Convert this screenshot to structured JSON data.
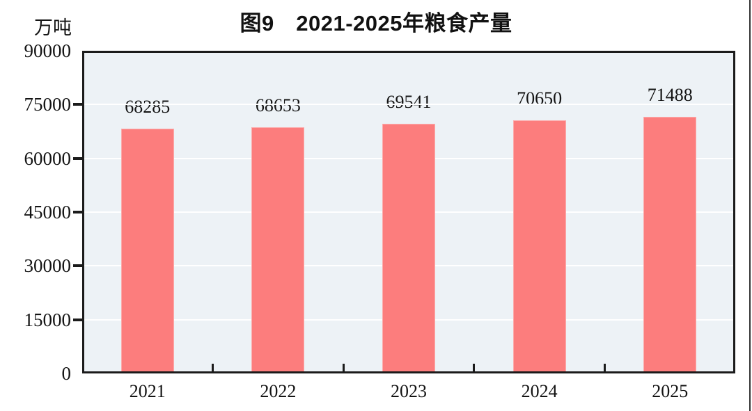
{
  "chart_data": {
    "type": "bar",
    "title": "图9　2021-2025年粮食产量",
    "unit": "万吨",
    "categories": [
      "2021",
      "2022",
      "2023",
      "2024",
      "2025"
    ],
    "values": [
      68285,
      68653,
      69541,
      70650,
      71488
    ],
    "bar_value_labels": [
      "68285",
      "68653",
      "69541",
      "70650",
      "71488"
    ],
    "xlabel": "",
    "ylabel": "万吨",
    "ylim": [
      0,
      90000
    ],
    "yticks": [
      0,
      15000,
      30000,
      45000,
      60000,
      75000,
      90000
    ],
    "grid": true,
    "legend": "none",
    "colors": {
      "bar_fill": "#FC7D7D",
      "bar_border": "#FCABAB",
      "plot_background": "#EDF2F6",
      "gridline": "#FFFFFF",
      "axis": "#1B1B1B",
      "text": "#141414"
    }
  }
}
